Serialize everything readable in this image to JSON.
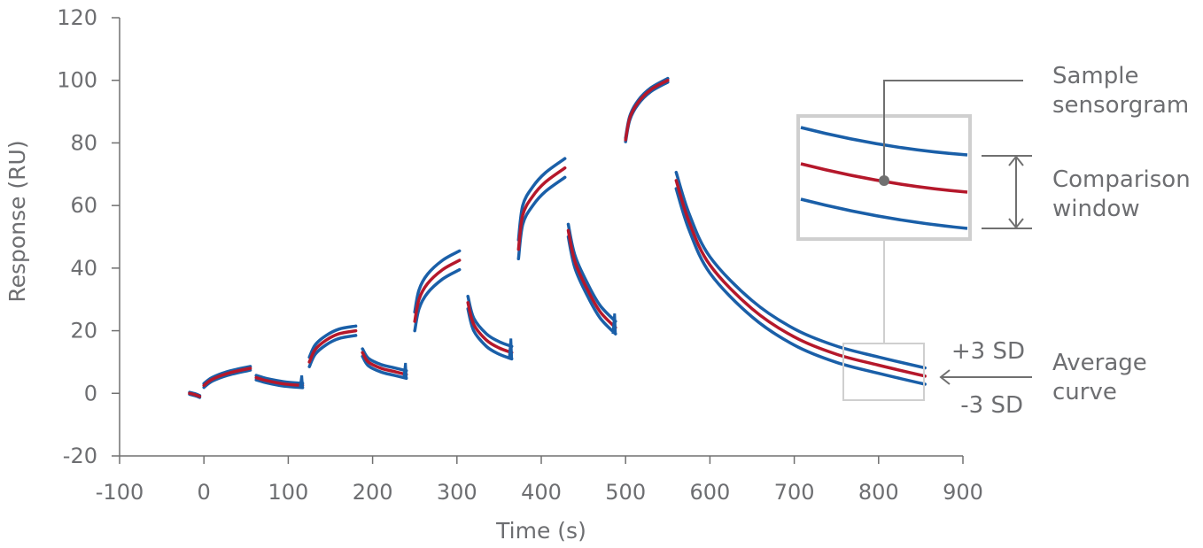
{
  "chart_data": {
    "type": "line",
    "title": "",
    "xlabel": "Time (s)",
    "ylabel": "Response (RU)",
    "xlim": [
      -100,
      900
    ],
    "ylim": [
      -20,
      120
    ],
    "xticks": [
      -100,
      0,
      100,
      200,
      300,
      400,
      500,
      600,
      700,
      800,
      900
    ],
    "yticks": [
      -20,
      0,
      20,
      40,
      60,
      80,
      100,
      120
    ],
    "grid": false,
    "colors": {
      "average": "#b5182b",
      "sd_band": "#1a5fa8",
      "annotation": "#707070",
      "frame": "#cfcfcf"
    },
    "segments": [
      {
        "phase": "baseline",
        "sd": 0.3,
        "points": [
          [
            -17,
            0
          ],
          [
            -11,
            -0.4
          ],
          [
            -5,
            -1
          ]
        ]
      },
      {
        "phase": "association",
        "sd": 0.6,
        "points": [
          [
            0,
            2.5
          ],
          [
            10,
            4.5
          ],
          [
            30,
            6.5
          ],
          [
            55,
            8
          ]
        ]
      },
      {
        "phase": "dissociation",
        "sd": 0.7,
        "points": [
          [
            62,
            5
          ],
          [
            75,
            4
          ],
          [
            95,
            3
          ],
          [
            117,
            2.5
          ]
        ]
      },
      {
        "phase": "association",
        "sd": 1.5,
        "points": [
          [
            125,
            10
          ],
          [
            132,
            14
          ],
          [
            145,
            17
          ],
          [
            160,
            19
          ],
          [
            180,
            20
          ]
        ]
      },
      {
        "phase": "dissociation",
        "sd": 1.2,
        "points": [
          [
            188,
            13
          ],
          [
            195,
            10
          ],
          [
            210,
            8
          ],
          [
            225,
            7
          ],
          [
            240,
            6
          ]
        ]
      },
      {
        "phase": "association",
        "sd": 3,
        "points": [
          [
            250,
            23
          ],
          [
            255,
            30
          ],
          [
            265,
            35
          ],
          [
            283,
            39.5
          ],
          [
            303,
            42.5
          ]
        ]
      },
      {
        "phase": "dissociation",
        "sd": 2,
        "points": [
          [
            313,
            29
          ],
          [
            320,
            22
          ],
          [
            335,
            17
          ],
          [
            350,
            14.5
          ],
          [
            365,
            13
          ]
        ]
      },
      {
        "phase": "association",
        "sd": 3,
        "points": [
          [
            373,
            46
          ],
          [
            378,
            57
          ],
          [
            390,
            63
          ],
          [
            405,
            67.5
          ],
          [
            428,
            72
          ]
        ]
      },
      {
        "phase": "dissociation",
        "sd": 2,
        "points": [
          [
            432,
            52
          ],
          [
            440,
            42
          ],
          [
            455,
            33
          ],
          [
            470,
            26
          ],
          [
            488,
            21
          ]
        ]
      },
      {
        "phase": "association",
        "sd": 0.6,
        "points": [
          [
            500,
            81
          ],
          [
            505,
            88
          ],
          [
            515,
            93
          ],
          [
            530,
            97
          ],
          [
            550,
            100
          ]
        ]
      },
      {
        "phase": "dissociation",
        "sd": 2.6,
        "points": [
          [
            560,
            68
          ],
          [
            575,
            55
          ],
          [
            600,
            41
          ],
          [
            650,
            27
          ],
          [
            700,
            18
          ],
          [
            750,
            12.5
          ],
          [
            800,
            9
          ],
          [
            855,
            5.5
          ]
        ]
      }
    ],
    "annotations": {
      "sample": [
        "Sample",
        "sensorgram"
      ],
      "window": [
        "Comparison",
        "window"
      ],
      "average": [
        "Average",
        "curve"
      ],
      "plus_sd": "+3 SD",
      "minus_sd": "-3 SD"
    }
  }
}
